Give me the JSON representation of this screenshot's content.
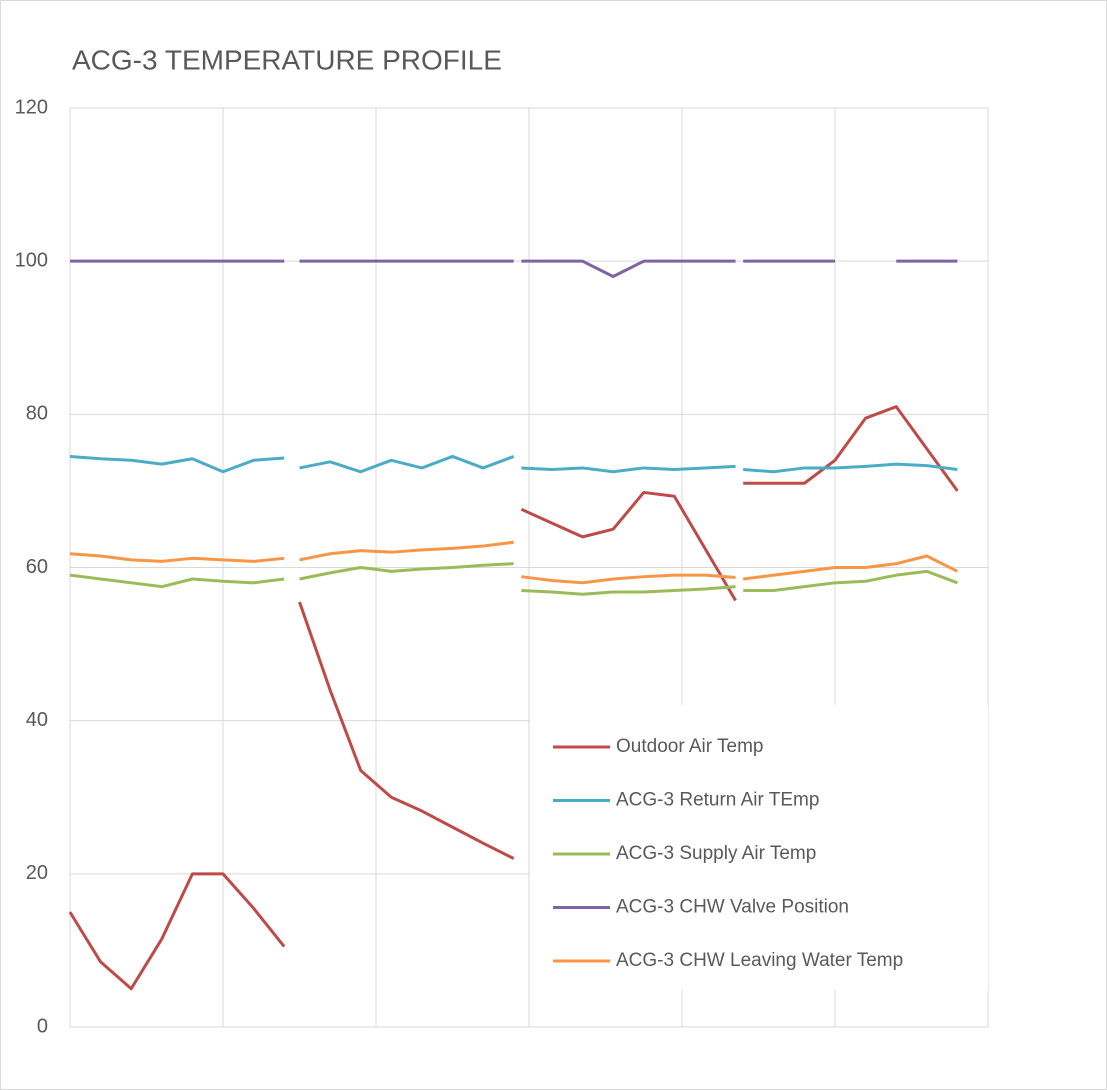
{
  "chart_data": {
    "type": "line",
    "title": "ACG-3 TEMPERATURE PROFILE",
    "x": [
      0,
      0.2,
      0.4,
      0.6,
      0.8,
      1.0,
      1.2,
      1.4,
      1.45,
      1.5,
      1.7,
      1.9,
      2.1,
      2.3,
      2.5,
      2.7,
      2.9,
      2.92,
      2.95,
      3.15,
      3.35,
      3.55,
      3.75,
      3.95,
      4.15,
      4.35,
      4.37,
      4.4,
      4.6,
      4.8,
      5.0,
      5.2,
      5.4,
      5.6,
      5.8
    ],
    "xlim": [
      0,
      6
    ],
    "xticks": [
      0,
      1,
      2,
      3,
      4,
      5,
      6
    ],
    "ylim": [
      0,
      120
    ],
    "yticks": [
      0,
      20,
      40,
      60,
      80,
      100,
      120
    ],
    "grid": true,
    "legend": "lower right",
    "series": [
      {
        "name": "Outdoor Air Temp",
        "color": "#be4b48",
        "values": [
          15,
          8.5,
          5,
          11.5,
          20,
          20,
          15.5,
          10.5,
          null,
          55.5,
          44,
          33.5,
          30,
          28.2,
          26.1,
          24,
          22,
          null,
          67.6,
          65.8,
          64,
          65,
          69.8,
          69.3,
          62.5,
          55.7,
          null,
          71,
          71,
          71,
          74,
          79.5,
          81,
          75.5,
          70
        ]
      },
      {
        "name": "ACG-3 Return Air TEmp",
        "color": "#4bacc6",
        "values": [
          74.5,
          74.2,
          74,
          73.5,
          74.2,
          72.5,
          74,
          74.3,
          null,
          73,
          73.8,
          72.5,
          74,
          73,
          74.5,
          73,
          74.5,
          null,
          73,
          72.8,
          73,
          72.5,
          73,
          72.8,
          73,
          73.2,
          null,
          72.8,
          72.5,
          73,
          73,
          73.2,
          73.5,
          73.3,
          72.8
        ]
      },
      {
        "name": "ACG-3 Supply Air Temp",
        "color": "#9bbb59",
        "values": [
          59,
          58.5,
          58,
          57.5,
          58.5,
          58.2,
          58,
          58.5,
          null,
          58.5,
          59.3,
          60,
          59.5,
          59.8,
          60,
          60.3,
          60.5,
          null,
          57,
          56.8,
          56.5,
          56.8,
          56.8,
          57,
          57.2,
          57.5,
          null,
          57,
          57,
          57.5,
          58,
          58.2,
          59,
          59.5,
          58
        ]
      },
      {
        "name": "ACG-3 CHW Valve Position",
        "color": "#8064a2",
        "values": [
          100,
          100,
          100,
          100,
          100,
          100,
          100,
          100,
          null,
          100,
          100,
          100,
          100,
          100,
          100,
          100,
          100,
          null,
          100,
          100,
          100,
          98,
          100,
          100,
          100,
          100,
          null,
          100,
          100,
          100,
          100,
          null,
          100,
          100,
          100
        ]
      },
      {
        "name": "ACG-3 CHW Leaving Water Temp",
        "color": "#f79646",
        "values": [
          61.8,
          61.5,
          61,
          60.8,
          61.2,
          61,
          60.8,
          61.2,
          null,
          61,
          61.8,
          62.2,
          62,
          62.3,
          62.5,
          62.8,
          63.3,
          null,
          58.8,
          58.3,
          58,
          58.5,
          58.8,
          59,
          59,
          58.7,
          null,
          58.5,
          59,
          59.5,
          60,
          60,
          60.5,
          61.5,
          59.5
        ]
      }
    ]
  }
}
